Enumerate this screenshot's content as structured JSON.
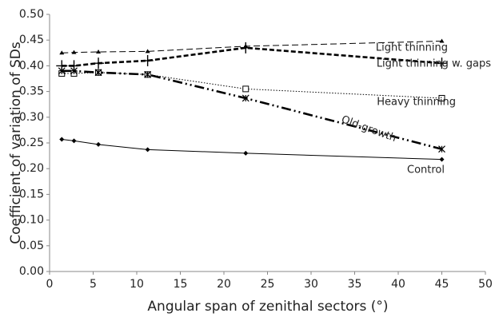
{
  "chart_data": {
    "type": "line",
    "x_label": "Angular span of zenithal sectors (°)",
    "y_label": "Coefficient of variation of SDs",
    "x": [
      1.4,
      2.8,
      5.6,
      11.25,
      22.5,
      45
    ],
    "series": [
      {
        "name": "Light thinning",
        "color": "#000000",
        "dash": "dashed",
        "marker": "triangle",
        "values": [
          0.425,
          0.426,
          0.427,
          0.428,
          0.438,
          0.448
        ]
      },
      {
        "name": "Light thinning w. gaps",
        "color": "#000000",
        "dash": "bold-dashed",
        "marker": "plus",
        "values": [
          0.4,
          0.4,
          0.405,
          0.41,
          0.435,
          0.405
        ]
      },
      {
        "name": "Heavy thinning",
        "color": "#000000",
        "dash": "dotted",
        "marker": "square",
        "values": [
          0.385,
          0.385,
          0.387,
          0.383,
          0.355,
          0.337
        ]
      },
      {
        "name": "Old-growth",
        "color": "#000000",
        "dash": "dash-dot-dot",
        "marker": "star",
        "values": [
          0.39,
          0.39,
          0.387,
          0.383,
          0.337,
          0.238
        ]
      },
      {
        "name": "Control",
        "color": "#000000",
        "dash": "solid",
        "marker": "diamond",
        "values": [
          0.257,
          0.254,
          0.247,
          0.237,
          0.23,
          0.218
        ]
      }
    ],
    "xlim": [
      0,
      50
    ],
    "xticks": [
      0,
      5,
      10,
      15,
      20,
      25,
      30,
      35,
      40,
      45,
      50
    ],
    "ylim": [
      0,
      0.5
    ],
    "yticks": [
      {
        "value": 0,
        "label": "0.00"
      },
      {
        "value": 0.05,
        "label": "0.05"
      },
      {
        "value": 0.1,
        "label": "0.10"
      },
      {
        "value": 0.15,
        "label": "0.15"
      },
      {
        "value": 0.2,
        "label": "0.20"
      },
      {
        "value": 0.25,
        "label": "0.25"
      },
      {
        "value": 0.3,
        "label": "0.30"
      },
      {
        "value": 0.35,
        "label": "0.35"
      },
      {
        "value": 0.4,
        "label": "0.40"
      },
      {
        "value": 0.45,
        "label": "0.45"
      },
      {
        "value": 0.5,
        "label": "0.50"
      }
    ]
  }
}
